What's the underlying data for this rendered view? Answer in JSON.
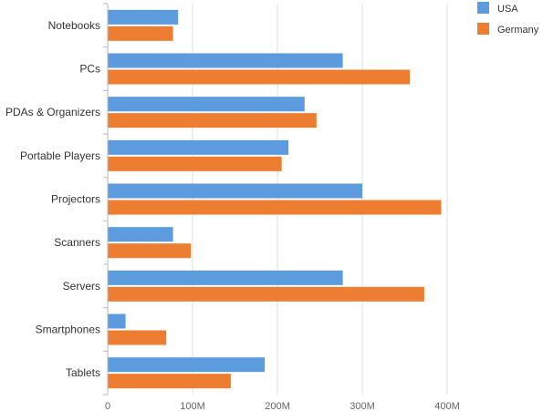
{
  "chart_data": {
    "type": "bar",
    "orientation": "horizontal",
    "categories": [
      "Notebooks",
      "PCs",
      "PDAs & Organizers",
      "Portable Players",
      "Projectors",
      "Scanners",
      "Servers",
      "Smartphones",
      "Tablets"
    ],
    "series": [
      {
        "name": "USA",
        "color": "#5B9BDE",
        "values": [
          83,
          277,
          232,
          213,
          300,
          77,
          277,
          21,
          185
        ]
      },
      {
        "name": "Germany",
        "color": "#ED7D31",
        "values": [
          77,
          356,
          246,
          205,
          393,
          98,
          373,
          69,
          145
        ]
      }
    ],
    "xticks": [
      {
        "value": 0,
        "label": "0"
      },
      {
        "value": 100,
        "label": "100M"
      },
      {
        "value": 200,
        "label": "200M"
      },
      {
        "value": 300,
        "label": "300M"
      },
      {
        "value": 400,
        "label": "400M"
      }
    ],
    "xlim": [
      0,
      400
    ],
    "value_unit": "M",
    "grid": true,
    "legend_position": "top-right"
  }
}
